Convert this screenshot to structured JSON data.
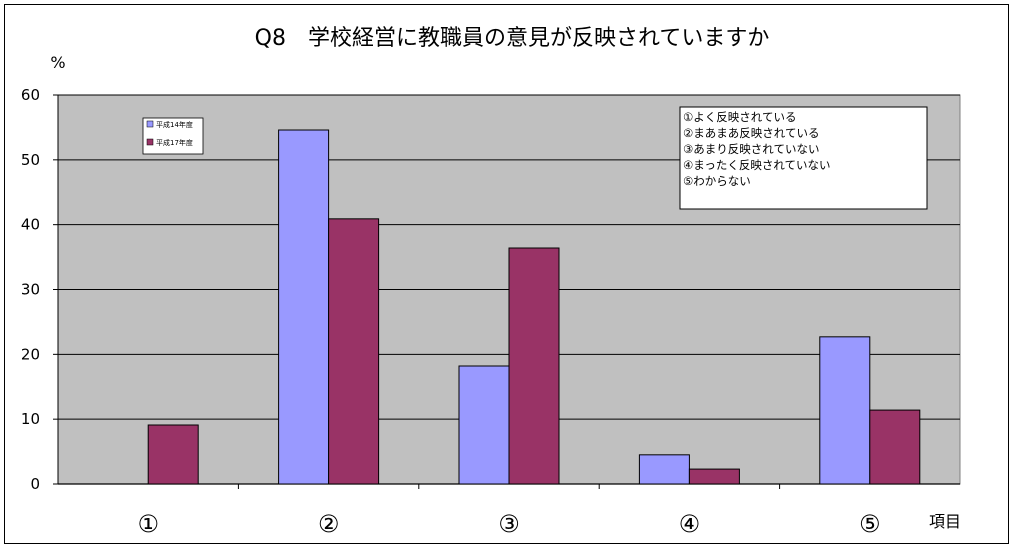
{
  "chart_data": {
    "type": "bar",
    "title": "Q8　学校経営に教職員の意見が反映されていますか",
    "ylabel": "%",
    "xlabel": "項目",
    "categories": [
      "①",
      "②",
      "③",
      "④",
      "⑤"
    ],
    "series": [
      {
        "name": "平成14年度",
        "values": [
          0,
          54.6,
          18.2,
          4.5,
          22.7
        ],
        "color": "#9999ff"
      },
      {
        "name": "平成17年度",
        "values": [
          9.1,
          40.9,
          36.4,
          2.3,
          11.4
        ],
        "color": "#993366"
      }
    ],
    "ylim": [
      0,
      60
    ],
    "yticks": [
      0,
      10,
      20,
      30,
      40,
      50,
      60
    ],
    "grid": true,
    "plot_background": "#c0c0c0",
    "legend_position": "top-left",
    "notes": [
      "①よく反映されている",
      "②まあまあ反映されている",
      "③あまり反映されていない",
      "④まったく反映されていない",
      "⑤わからない"
    ]
  }
}
